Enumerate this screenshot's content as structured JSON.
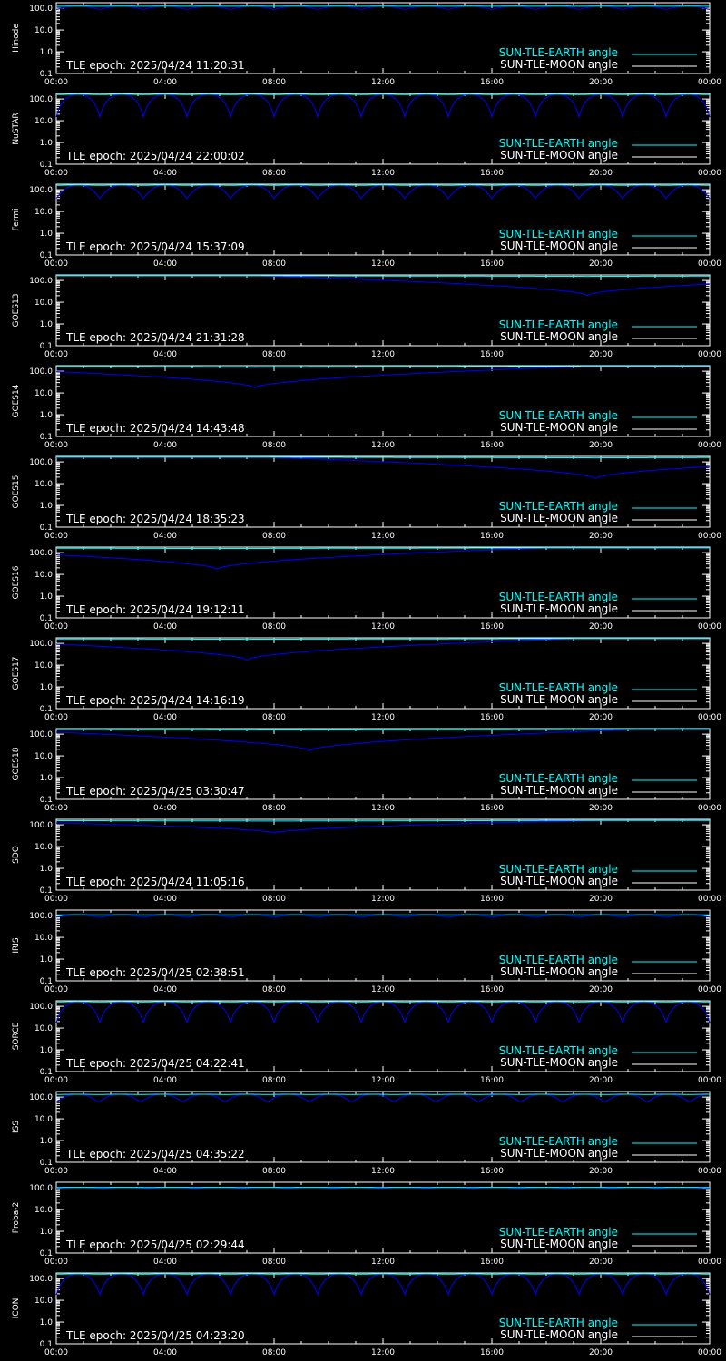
{
  "colors": {
    "background": "#000000",
    "axes": "#ffffff",
    "sun_tle_earth": "#00ffff",
    "sun_tle_moon": "#0000ff"
  },
  "legend": {
    "earth_label": "SUN-TLE-EARTH angle",
    "moon_label": "SUN-TLE-MOON angle"
  },
  "chart_data": [
    {
      "type": "line",
      "satellite": "Hinode",
      "epoch_label": "TLE epoch: 2025/04/24 11:20:31",
      "x_ticks": [
        "00:00",
        "04:00",
        "08:00",
        "12:00",
        "16:00",
        "20:00",
        "00:00"
      ],
      "y_ticks": [
        "100.0",
        "10.0",
        "1.0",
        "0.1"
      ],
      "y_scale": "log",
      "ylim": [
        0.1,
        180
      ],
      "shape": "periodic",
      "period_hours": 1.6,
      "min": 90,
      "max": 125
    },
    {
      "type": "line",
      "satellite": "NuSTAR",
      "epoch_label": "TLE epoch: 2025/04/24 22:00:02",
      "x_ticks": [
        "00:00",
        "04:00",
        "08:00",
        "12:00",
        "16:00",
        "20:00",
        "00:00"
      ],
      "y_ticks": [
        "100.0",
        "10.0",
        "1.0",
        "0.1"
      ],
      "y_scale": "log",
      "ylim": [
        0.1,
        180
      ],
      "shape": "periodic",
      "period_hours": 1.6,
      "min": 15,
      "max": 165
    },
    {
      "type": "line",
      "satellite": "Fermi",
      "epoch_label": "TLE epoch: 2025/04/24 15:37:09",
      "x_ticks": [
        "00:00",
        "04:00",
        "08:00",
        "12:00",
        "16:00",
        "20:00",
        "00:00"
      ],
      "y_ticks": [
        "100.0",
        "10.0",
        "1.0",
        "0.1"
      ],
      "y_scale": "log",
      "ylim": [
        0.1,
        180
      ],
      "shape": "periodic",
      "period_hours": 1.6,
      "min": 40,
      "max": 165
    },
    {
      "type": "line",
      "satellite": "GOES13",
      "epoch_label": "TLE epoch: 2025/04/24 21:31:28",
      "x_ticks": [
        "00:00",
        "04:00",
        "08:00",
        "12:00",
        "16:00",
        "20:00",
        "00:00"
      ],
      "y_ticks": [
        "100.0",
        "10.0",
        "1.0",
        "0.1"
      ],
      "y_scale": "log",
      "ylim": [
        0.1,
        180
      ],
      "shape": "dip",
      "dip_hour": 19.5,
      "min": 20,
      "max": 165
    },
    {
      "type": "line",
      "satellite": "GOES14",
      "epoch_label": "TLE epoch: 2025/04/24 14:43:48",
      "x_ticks": [
        "00:00",
        "04:00",
        "08:00",
        "12:00",
        "16:00",
        "20:00",
        "00:00"
      ],
      "y_ticks": [
        "100.0",
        "10.0",
        "1.0",
        "0.1"
      ],
      "y_scale": "log",
      "ylim": [
        0.1,
        180
      ],
      "shape": "dip",
      "dip_hour": 7.3,
      "min": 17,
      "max": 165
    },
    {
      "type": "line",
      "satellite": "GOES15",
      "epoch_label": "TLE epoch: 2025/04/24 18:35:23",
      "x_ticks": [
        "00:00",
        "04:00",
        "08:00",
        "12:00",
        "16:00",
        "20:00",
        "00:00"
      ],
      "y_ticks": [
        "100.0",
        "10.0",
        "1.0",
        "0.1"
      ],
      "y_scale": "log",
      "ylim": [
        0.1,
        180
      ],
      "shape": "dip",
      "dip_hour": 19.8,
      "min": 17,
      "max": 165
    },
    {
      "type": "line",
      "satellite": "GOES16",
      "epoch_label": "TLE epoch: 2025/04/24 19:12:11",
      "x_ticks": [
        "00:00",
        "04:00",
        "08:00",
        "12:00",
        "16:00",
        "20:00",
        "00:00"
      ],
      "y_ticks": [
        "100.0",
        "10.0",
        "1.0",
        "0.1"
      ],
      "y_scale": "log",
      "ylim": [
        0.1,
        180
      ],
      "shape": "dip",
      "dip_hour": 5.9,
      "min": 17,
      "max": 165
    },
    {
      "type": "line",
      "satellite": "GOES17",
      "epoch_label": "TLE epoch: 2025/04/24 14:16:19",
      "x_ticks": [
        "00:00",
        "04:00",
        "08:00",
        "12:00",
        "16:00",
        "20:00",
        "00:00"
      ],
      "y_ticks": [
        "100.0",
        "10.0",
        "1.0",
        "0.1"
      ],
      "y_scale": "log",
      "ylim": [
        0.1,
        180
      ],
      "shape": "dip",
      "dip_hour": 7.0,
      "min": 17,
      "max": 165
    },
    {
      "type": "line",
      "satellite": "GOES18",
      "epoch_label": "TLE epoch: 2025/04/25 03:30:47",
      "x_ticks": [
        "00:00",
        "04:00",
        "08:00",
        "12:00",
        "16:00",
        "20:00",
        "00:00"
      ],
      "y_ticks": [
        "100.0",
        "10.0",
        "1.0",
        "0.1"
      ],
      "y_scale": "log",
      "ylim": [
        0.1,
        180
      ],
      "shape": "dip",
      "dip_hour": 9.3,
      "min": 17,
      "max": 165
    },
    {
      "type": "line",
      "satellite": "SDO",
      "epoch_label": "TLE epoch: 2025/04/24 11:05:16",
      "x_ticks": [
        "00:00",
        "04:00",
        "08:00",
        "12:00",
        "16:00",
        "20:00",
        "00:00"
      ],
      "y_ticks": [
        "100.0",
        "10.0",
        "1.0",
        "0.1"
      ],
      "y_scale": "log",
      "ylim": [
        0.1,
        180
      ],
      "shape": "dip",
      "dip_hour": 8.0,
      "min": 42,
      "max": 160
    },
    {
      "type": "line",
      "satellite": "IRIS",
      "epoch_label": "TLE epoch: 2025/04/25 02:38:51",
      "x_ticks": [
        "00:00",
        "04:00",
        "08:00",
        "12:00",
        "16:00",
        "20:00",
        "00:00"
      ],
      "y_ticks": [
        "100.0",
        "10.0",
        "1.0",
        "0.1"
      ],
      "y_scale": "log",
      "ylim": [
        0.1,
        180
      ],
      "shape": "periodic",
      "period_hours": 1.6,
      "min": 85,
      "max": 110
    },
    {
      "type": "line",
      "satellite": "SORCE",
      "epoch_label": "TLE epoch: 2025/04/25 04:22:41",
      "x_ticks": [
        "00:00",
        "04:00",
        "08:00",
        "12:00",
        "16:00",
        "20:00",
        "00:00"
      ],
      "y_ticks": [
        "100.0",
        "10.0",
        "1.0",
        "0.1"
      ],
      "y_scale": "log",
      "ylim": [
        0.1,
        180
      ],
      "shape": "periodic",
      "period_hours": 1.6,
      "min": 18,
      "max": 165
    },
    {
      "type": "line",
      "satellite": "ISS",
      "epoch_label": "TLE epoch: 2025/04/25 04:35:22",
      "x_ticks": [
        "00:00",
        "04:00",
        "08:00",
        "12:00",
        "16:00",
        "20:00",
        "00:00"
      ],
      "y_ticks": [
        "100.0",
        "10.0",
        "1.0",
        "0.1"
      ],
      "y_scale": "log",
      "ylim": [
        0.1,
        180
      ],
      "shape": "periodic",
      "period_hours": 1.55,
      "min": 60,
      "max": 135
    },
    {
      "type": "line",
      "satellite": "Proba-2",
      "epoch_label": "TLE epoch: 2025/04/25 02:29:44",
      "x_ticks": [
        "00:00",
        "04:00",
        "08:00",
        "12:00",
        "16:00",
        "20:00",
        "00:00"
      ],
      "y_ticks": [
        "100.0",
        "10.0",
        "1.0",
        "0.1"
      ],
      "y_scale": "log",
      "ylim": [
        0.1,
        180
      ],
      "shape": "periodic",
      "period_hours": 1.7,
      "min": 92,
      "max": 105
    },
    {
      "type": "line",
      "satellite": "ICON",
      "epoch_label": "TLE epoch: 2025/04/25 04:23:20",
      "x_ticks": [
        "00:00",
        "04:00",
        "08:00",
        "12:00",
        "16:00",
        "20:00",
        "00:00"
      ],
      "y_ticks": [
        "100.0",
        "10.0",
        "1.0",
        "0.1"
      ],
      "y_scale": "log",
      "ylim": [
        0.1,
        180
      ],
      "shape": "periodic",
      "period_hours": 1.6,
      "min": 18,
      "max": 165
    }
  ]
}
